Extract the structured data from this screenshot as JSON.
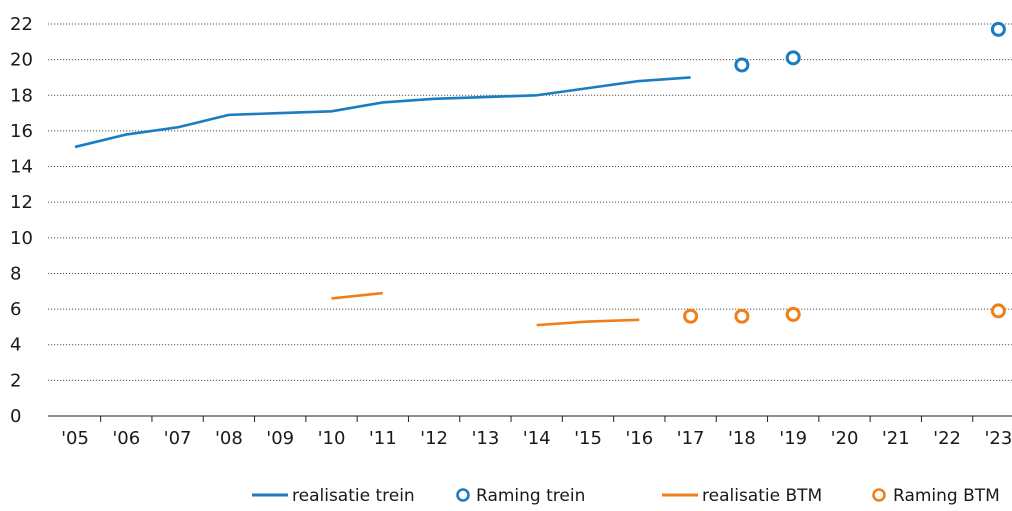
{
  "chart_data": {
    "type": "line",
    "title": "",
    "xlabel": "",
    "ylabel": "",
    "categories": [
      "'05",
      "'06",
      "'07",
      "'08",
      "'09",
      "'10",
      "'11",
      "'12",
      "'13",
      "'14",
      "'15",
      "'16",
      "'17",
      "'18",
      "'19",
      "'20",
      "'21",
      "'22",
      "'23"
    ],
    "ylim": [
      0,
      22
    ],
    "yticks": [
      0,
      2,
      4,
      6,
      8,
      10,
      12,
      14,
      16,
      18,
      20,
      22
    ],
    "grid": true,
    "legend_position": "bottom",
    "series": [
      {
        "name": "realisatie trein",
        "kind": "line",
        "color": "#1a7cc1",
        "points": [
          {
            "x": "'05",
            "y": 15.1
          },
          {
            "x": "'06",
            "y": 15.8
          },
          {
            "x": "'07",
            "y": 16.2
          },
          {
            "x": "'08",
            "y": 16.9
          },
          {
            "x": "'09",
            "y": 17.0
          },
          {
            "x": "'10",
            "y": 17.1
          },
          {
            "x": "'11",
            "y": 17.6
          },
          {
            "x": "'12",
            "y": 17.8
          },
          {
            "x": "'13",
            "y": 17.9
          },
          {
            "x": "'14",
            "y": 18.0
          },
          {
            "x": "'15",
            "y": 18.4
          },
          {
            "x": "'16",
            "y": 18.8
          },
          {
            "x": "'17",
            "y": 19.0
          }
        ]
      },
      {
        "name": "Raming trein",
        "kind": "marker",
        "color": "#1a7cc1",
        "points": [
          {
            "x": "'18",
            "y": 19.7
          },
          {
            "x": "'19",
            "y": 20.1
          },
          {
            "x": "'23",
            "y": 21.7
          }
        ]
      },
      {
        "name": "realisatie BTM",
        "kind": "line",
        "color": "#f07f1a",
        "segments": [
          [
            {
              "x": "'10",
              "y": 6.6
            },
            {
              "x": "'11",
              "y": 6.9
            }
          ],
          [
            {
              "x": "'14",
              "y": 5.1
            },
            {
              "x": "'15",
              "y": 5.3
            },
            {
              "x": "'16",
              "y": 5.4
            }
          ]
        ]
      },
      {
        "name": "Raming BTM",
        "kind": "marker",
        "color": "#f07f1a",
        "points": [
          {
            "x": "'17",
            "y": 5.6
          },
          {
            "x": "'18",
            "y": 5.6
          },
          {
            "x": "'19",
            "y": 5.7
          },
          {
            "x": "'23",
            "y": 5.9
          }
        ]
      }
    ]
  }
}
